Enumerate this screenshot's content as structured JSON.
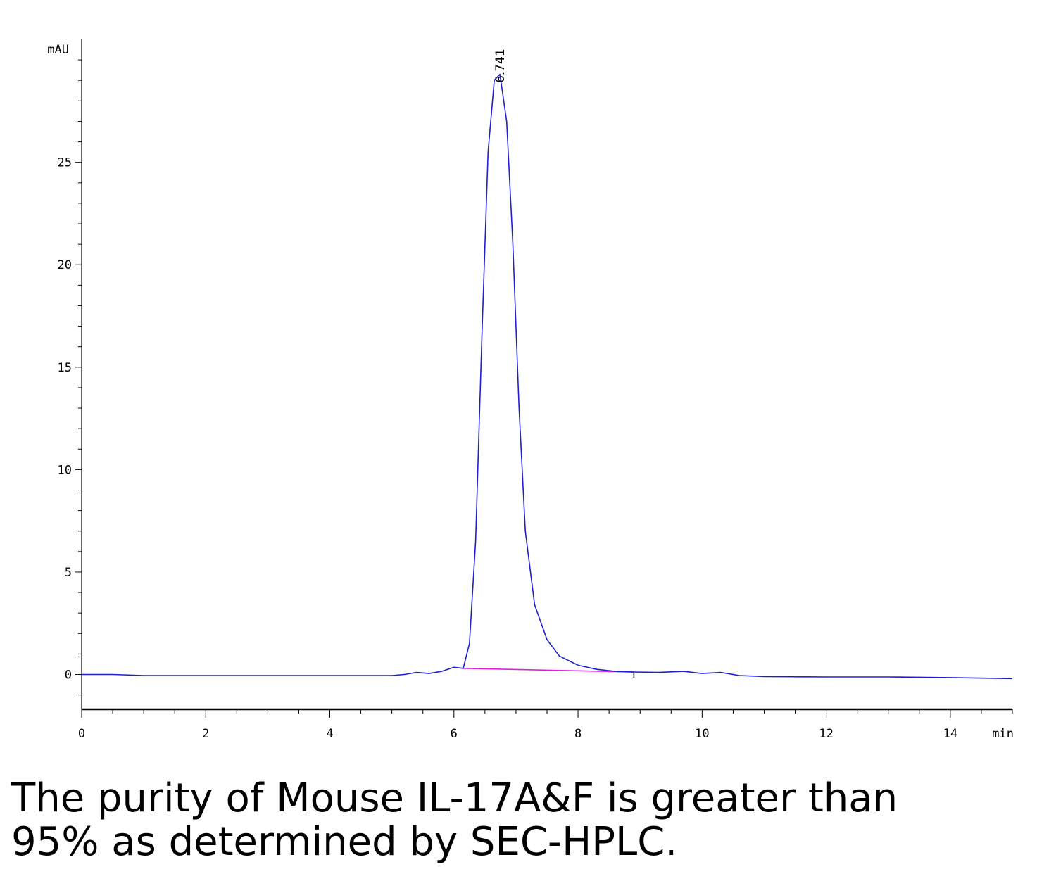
{
  "chart_data": {
    "type": "line",
    "xlabel": "min",
    "ylabel": "mAU",
    "xlim": [
      0,
      15
    ],
    "ylim": [
      -1.7,
      31
    ],
    "x_ticks": [
      0,
      2,
      4,
      6,
      8,
      10,
      12,
      14
    ],
    "y_ticks": [
      0,
      5,
      10,
      15,
      20,
      25
    ],
    "grid": false,
    "colors": {
      "trace": "#2020d0",
      "baseline": "#e020e0",
      "axis": "#000000"
    },
    "series": [
      {
        "x": [
          0,
          0.5,
          1,
          1.5,
          2,
          2.5,
          3,
          3.5,
          4,
          4.5,
          5,
          5.2,
          5.4,
          5.6,
          5.8,
          6.0,
          6.15,
          6.25,
          6.35,
          6.45,
          6.55,
          6.65,
          6.741,
          6.85,
          6.95,
          7.05,
          7.15,
          7.3,
          7.5,
          7.7,
          8.0,
          8.3,
          8.6,
          8.9,
          9.3,
          9.7,
          10.0,
          10.3,
          10.6,
          11,
          12,
          13,
          14,
          15
        ],
        "y": [
          0,
          0,
          -0.05,
          -0.05,
          -0.05,
          -0.05,
          -0.05,
          -0.05,
          -0.05,
          -0.05,
          -0.05,
          0,
          0.1,
          0.05,
          0.15,
          0.35,
          0.3,
          1.5,
          6.5,
          16.5,
          25.5,
          29.0,
          29.3,
          27.0,
          21.0,
          13.0,
          7.0,
          3.4,
          1.7,
          0.9,
          0.45,
          0.25,
          0.15,
          0.12,
          0.1,
          0.15,
          0.05,
          0.1,
          -0.05,
          -0.1,
          -0.12,
          -0.12,
          -0.15,
          -0.2
        ]
      }
    ],
    "integration_baseline": {
      "x": [
        6.15,
        8.9
      ],
      "y": [
        0.3,
        0.12
      ]
    },
    "peak_label": {
      "x": 6.741,
      "text": "6.741"
    }
  },
  "caption": {
    "line1": "The purity of Mouse IL-17A&F is greater than",
    "line2": "95% as determined by SEC-HPLC."
  }
}
